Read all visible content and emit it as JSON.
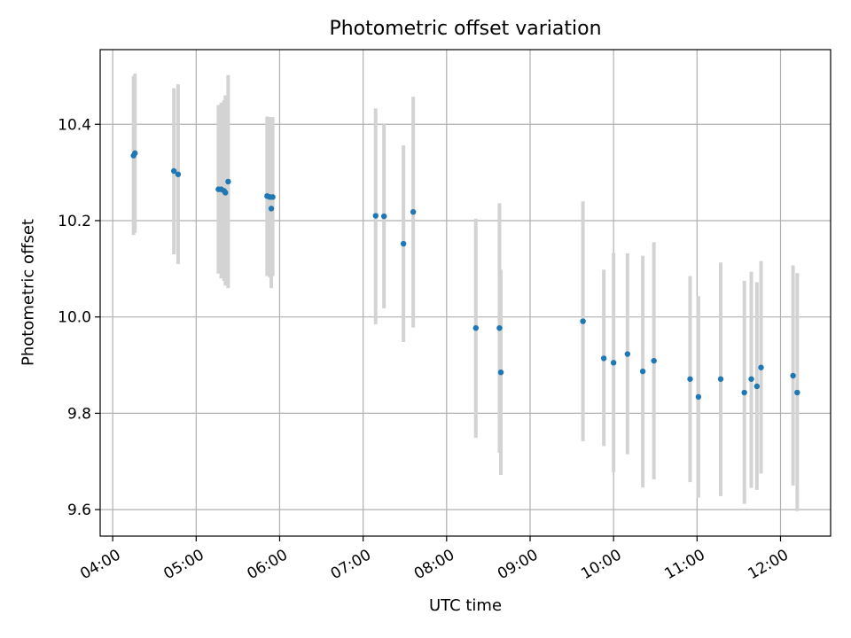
{
  "chart_data": {
    "type": "scatter",
    "title": "Photometric offset variation",
    "xlabel": "UTC time",
    "ylabel": "Photometric offset",
    "x_axis": {
      "unit": "hours UTC",
      "range": [
        "03:51",
        "12:36"
      ],
      "ticks": [
        "04:00",
        "05:00",
        "06:00",
        "07:00",
        "08:00",
        "09:00",
        "10:00",
        "11:00",
        "12:00"
      ]
    },
    "y_axis": {
      "range": [
        9.545,
        10.555
      ],
      "ticks": [
        "9.6",
        "9.8",
        "10.0",
        "10.2",
        "10.4"
      ]
    },
    "grid": true,
    "colors": {
      "points": "#1f77b4",
      "errorbars": "#d3d3d3",
      "grid": "#b0b0b0"
    },
    "points": [
      {
        "x": "04:15",
        "y": 10.335,
        "yerr": [
          10.17,
          10.5
        ]
      },
      {
        "x": "04:16",
        "y": 10.34,
        "yerr": [
          10.175,
          10.505
        ]
      },
      {
        "x": "04:44",
        "y": 10.303,
        "yerr": [
          10.13,
          10.475
        ]
      },
      {
        "x": "04:47",
        "y": 10.296,
        "yerr": [
          10.11,
          10.483
        ]
      },
      {
        "x": "05:16",
        "y": 10.265,
        "yerr": [
          10.09,
          10.44
        ]
      },
      {
        "x": "05:18",
        "y": 10.265,
        "yerr": [
          10.08,
          10.445
        ]
      },
      {
        "x": "05:20",
        "y": 10.262,
        "yerr": [
          10.075,
          10.45
        ]
      },
      {
        "x": "05:21",
        "y": 10.258,
        "yerr": [
          10.065,
          10.46
        ]
      },
      {
        "x": "05:23",
        "y": 10.281,
        "yerr": [
          10.06,
          10.502
        ]
      },
      {
        "x": "05:51",
        "y": 10.251,
        "yerr": [
          10.085,
          10.416
        ]
      },
      {
        "x": "05:53",
        "y": 10.249,
        "yerr": [
          10.082,
          10.415
        ]
      },
      {
        "x": "05:54",
        "y": 10.225,
        "yerr": [
          10.06,
          10.41
        ]
      },
      {
        "x": "05:55",
        "y": 10.249,
        "yerr": [
          10.085,
          10.415
        ]
      },
      {
        "x": "07:09",
        "y": 10.21,
        "yerr": [
          9.985,
          10.433
        ]
      },
      {
        "x": "07:15",
        "y": 10.209,
        "yerr": [
          10.018,
          10.4
        ]
      },
      {
        "x": "07:29",
        "y": 10.152,
        "yerr": [
          9.948,
          10.356
        ]
      },
      {
        "x": "07:36",
        "y": 10.218,
        "yerr": [
          9.978,
          10.457
        ]
      },
      {
        "x": "08:21",
        "y": 9.977,
        "yerr": [
          9.749,
          10.204
        ]
      },
      {
        "x": "08:38",
        "y": 9.977,
        "yerr": [
          9.718,
          10.236
        ]
      },
      {
        "x": "08:39",
        "y": 9.885,
        "yerr": [
          9.672,
          10.098
        ]
      },
      {
        "x": "09:38",
        "y": 9.991,
        "yerr": [
          9.742,
          10.24
        ]
      },
      {
        "x": "09:53",
        "y": 9.914,
        "yerr": [
          9.732,
          10.098
        ]
      },
      {
        "x": "10:00",
        "y": 9.905,
        "yerr": [
          9.678,
          10.133
        ]
      },
      {
        "x": "10:10",
        "y": 9.923,
        "yerr": [
          9.715,
          10.132
        ]
      },
      {
        "x": "10:21",
        "y": 9.887,
        "yerr": [
          9.646,
          10.127
        ]
      },
      {
        "x": "10:29",
        "y": 9.909,
        "yerr": [
          9.663,
          10.155
        ]
      },
      {
        "x": "10:55",
        "y": 9.871,
        "yerr": [
          9.657,
          10.085
        ]
      },
      {
        "x": "11:01",
        "y": 9.834,
        "yerr": [
          9.625,
          10.043
        ]
      },
      {
        "x": "11:17",
        "y": 9.871,
        "yerr": [
          9.628,
          10.113
        ]
      },
      {
        "x": "11:34",
        "y": 9.843,
        "yerr": [
          9.612,
          10.075
        ]
      },
      {
        "x": "11:39",
        "y": 9.871,
        "yerr": [
          9.645,
          10.094
        ]
      },
      {
        "x": "11:43",
        "y": 9.856,
        "yerr": [
          9.641,
          10.072
        ]
      },
      {
        "x": "11:46",
        "y": 9.895,
        "yerr": [
          9.675,
          10.116
        ]
      },
      {
        "x": "12:09",
        "y": 9.878,
        "yerr": [
          9.65,
          10.107
        ]
      },
      {
        "x": "12:12",
        "y": 9.843,
        "yerr": [
          9.597,
          10.091
        ]
      }
    ]
  }
}
